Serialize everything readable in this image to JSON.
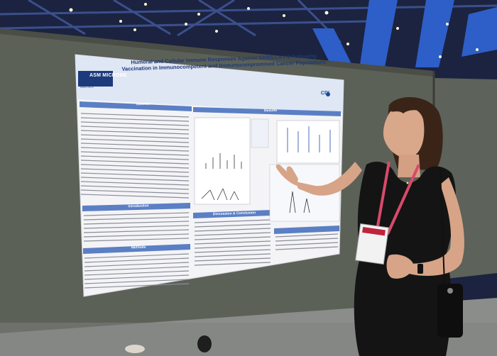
{
  "poster": {
    "title": "Humoral and Cellular Immune Responses Against SARS-CoV-2 Following Vaccination in Immunocompetent and Immunocompromised Cancer Populations",
    "logo_text": "ASM MICROBE",
    "logo_subtext": "ASM 2023",
    "partner_logo": "CDI",
    "sections": {
      "abstract": "Abstract",
      "results": "Results",
      "introduction": "Introduction",
      "methods": "Methods",
      "discussion": "Discussion & Conclusion"
    }
  },
  "colors": {
    "poster_band": "#5b7fc4",
    "board": "#5c6158",
    "dress": "#141414",
    "lanyard": "#d94a6a"
  }
}
